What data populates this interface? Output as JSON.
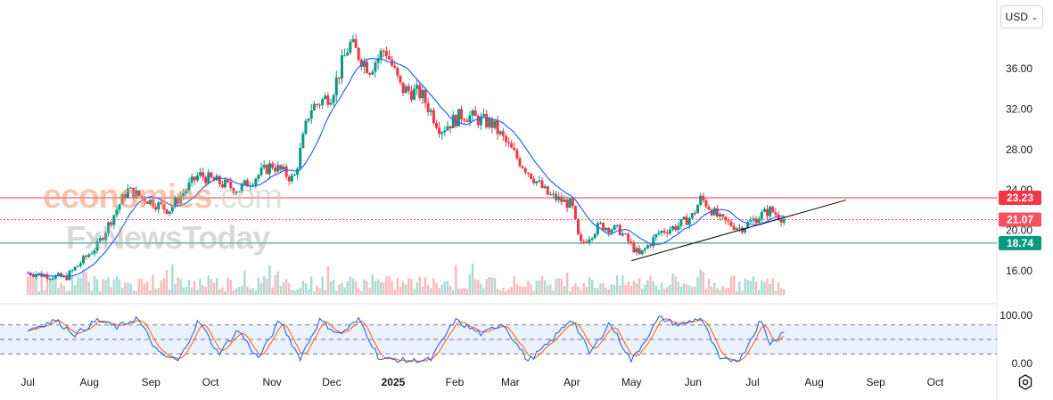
{
  "currency": {
    "label": "USD",
    "chevron": "chevron-down-icon"
  },
  "watermark": {
    "line1_accent": "economies",
    "line1_rest": ".com",
    "line2": "FxNewsToday"
  },
  "settings_icon": "settings-icon",
  "colors": {
    "up": "#089981",
    "down": "#f23645",
    "ma": "#2962ff",
    "resistance": "#f23645",
    "support": "#089981",
    "current": "#f7525f",
    "stoch_k": "#2962ff",
    "stoch_d": "#ff6d00",
    "trendline": "#000000"
  },
  "chart_data": [
    {
      "type": "candlestick",
      "x_ticks": [
        "Jul",
        "Aug",
        "Sep",
        "Oct",
        "Nov",
        "Dec",
        "2025",
        "Feb",
        "Mar",
        "Apr",
        "May",
        "Jun",
        "Jul",
        "Aug",
        "Sep",
        "Oct"
      ],
      "y_ticks": [
        "16.00",
        "20.00",
        "24.00",
        "28.00",
        "32.00",
        "36.00"
      ],
      "ylim": [
        13.5,
        40.0
      ],
      "price_levels": [
        {
          "label": "23.23",
          "value": 23.23,
          "kind": "resistance"
        },
        {
          "label": "21.07",
          "value": 21.07,
          "kind": "current"
        },
        {
          "label": "18.74",
          "value": 18.74,
          "kind": "support"
        }
      ],
      "trendline": {
        "from": {
          "date": "2025-05-01",
          "y": 17.0
        },
        "to": {
          "date": "2025-08-17",
          "y": 23.0
        }
      },
      "key_points": [
        {
          "date": "2024-07-01",
          "close": 15.8
        },
        {
          "date": "2024-07-20",
          "close": 15.3
        },
        {
          "date": "2024-08-05",
          "close": 18.5
        },
        {
          "date": "2024-08-20",
          "close": 24.0
        },
        {
          "date": "2024-09-10",
          "close": 22.0
        },
        {
          "date": "2024-09-25",
          "close": 25.5
        },
        {
          "date": "2024-10-15",
          "close": 24.0
        },
        {
          "date": "2024-11-01",
          "close": 26.5
        },
        {
          "date": "2024-11-12",
          "close": 25.0
        },
        {
          "date": "2024-11-20",
          "close": 32.0
        },
        {
          "date": "2024-12-01",
          "close": 33.5
        },
        {
          "date": "2024-12-10",
          "close": 38.5
        },
        {
          "date": "2024-12-20",
          "close": 36.0
        },
        {
          "date": "2024-12-28",
          "close": 38.0
        },
        {
          "date": "2025-01-05",
          "close": 34.0
        },
        {
          "date": "2025-01-15",
          "close": 33.5
        },
        {
          "date": "2025-01-25",
          "close": 30.0
        },
        {
          "date": "2025-02-05",
          "close": 31.5
        },
        {
          "date": "2025-02-20",
          "close": 30.5
        },
        {
          "date": "2025-03-05",
          "close": 27.0
        },
        {
          "date": "2025-03-20",
          "close": 23.5
        },
        {
          "date": "2025-04-01",
          "close": 22.5
        },
        {
          "date": "2025-04-05",
          "close": 18.5
        },
        {
          "date": "2025-04-15",
          "close": 20.5
        },
        {
          "date": "2025-04-25",
          "close": 20.0
        },
        {
          "date": "2025-05-05",
          "close": 17.5
        },
        {
          "date": "2025-05-15",
          "close": 19.8
        },
        {
          "date": "2025-05-25",
          "close": 20.5
        },
        {
          "date": "2025-06-01",
          "close": 21.5
        },
        {
          "date": "2025-06-05",
          "close": 23.2
        },
        {
          "date": "2025-06-15",
          "close": 21.0
        },
        {
          "date": "2025-06-25",
          "close": 20.2
        },
        {
          "date": "2025-07-05",
          "close": 21.5
        },
        {
          "date": "2025-07-10",
          "close": 22.0
        },
        {
          "date": "2025-07-17",
          "close": 21.07
        }
      ]
    },
    {
      "type": "line",
      "name_hidden": true,
      "panel": "stochastic",
      "y_ticks": [
        "100.00",
        "0.00"
      ],
      "ylim": [
        0,
        100
      ],
      "bands": [
        80,
        50,
        20
      ],
      "key_points_k": [
        {
          "date": "2024-07-01",
          "y": 70
        },
        {
          "date": "2024-07-15",
          "y": 90
        },
        {
          "date": "2024-07-25",
          "y": 60
        },
        {
          "date": "2024-08-05",
          "y": 90
        },
        {
          "date": "2024-08-15",
          "y": 75
        },
        {
          "date": "2024-08-25",
          "y": 95
        },
        {
          "date": "2024-09-05",
          "y": 20
        },
        {
          "date": "2024-09-15",
          "y": 5
        },
        {
          "date": "2024-09-25",
          "y": 90
        },
        {
          "date": "2024-10-05",
          "y": 20
        },
        {
          "date": "2024-10-15",
          "y": 70
        },
        {
          "date": "2024-10-25",
          "y": 10
        },
        {
          "date": "2024-11-05",
          "y": 90
        },
        {
          "date": "2024-11-15",
          "y": 10
        },
        {
          "date": "2024-11-25",
          "y": 90
        },
        {
          "date": "2024-12-05",
          "y": 60
        },
        {
          "date": "2024-12-15",
          "y": 92
        },
        {
          "date": "2024-12-25",
          "y": 10
        },
        {
          "date": "2025-01-10",
          "y": 5
        },
        {
          "date": "2025-01-20",
          "y": 8
        },
        {
          "date": "2025-02-01",
          "y": 90
        },
        {
          "date": "2025-02-15",
          "y": 60
        },
        {
          "date": "2025-02-25",
          "y": 85
        },
        {
          "date": "2025-03-10",
          "y": 5
        },
        {
          "date": "2025-03-20",
          "y": 40
        },
        {
          "date": "2025-04-01",
          "y": 95
        },
        {
          "date": "2025-04-10",
          "y": 20
        },
        {
          "date": "2025-04-20",
          "y": 85
        },
        {
          "date": "2025-05-01",
          "y": 5
        },
        {
          "date": "2025-05-15",
          "y": 95
        },
        {
          "date": "2025-05-25",
          "y": 80
        },
        {
          "date": "2025-06-05",
          "y": 95
        },
        {
          "date": "2025-06-15",
          "y": 5
        },
        {
          "date": "2025-06-25",
          "y": 10
        },
        {
          "date": "2025-07-05",
          "y": 90
        },
        {
          "date": "2025-07-10",
          "y": 40
        },
        {
          "date": "2025-07-17",
          "y": 70
        }
      ]
    }
  ]
}
